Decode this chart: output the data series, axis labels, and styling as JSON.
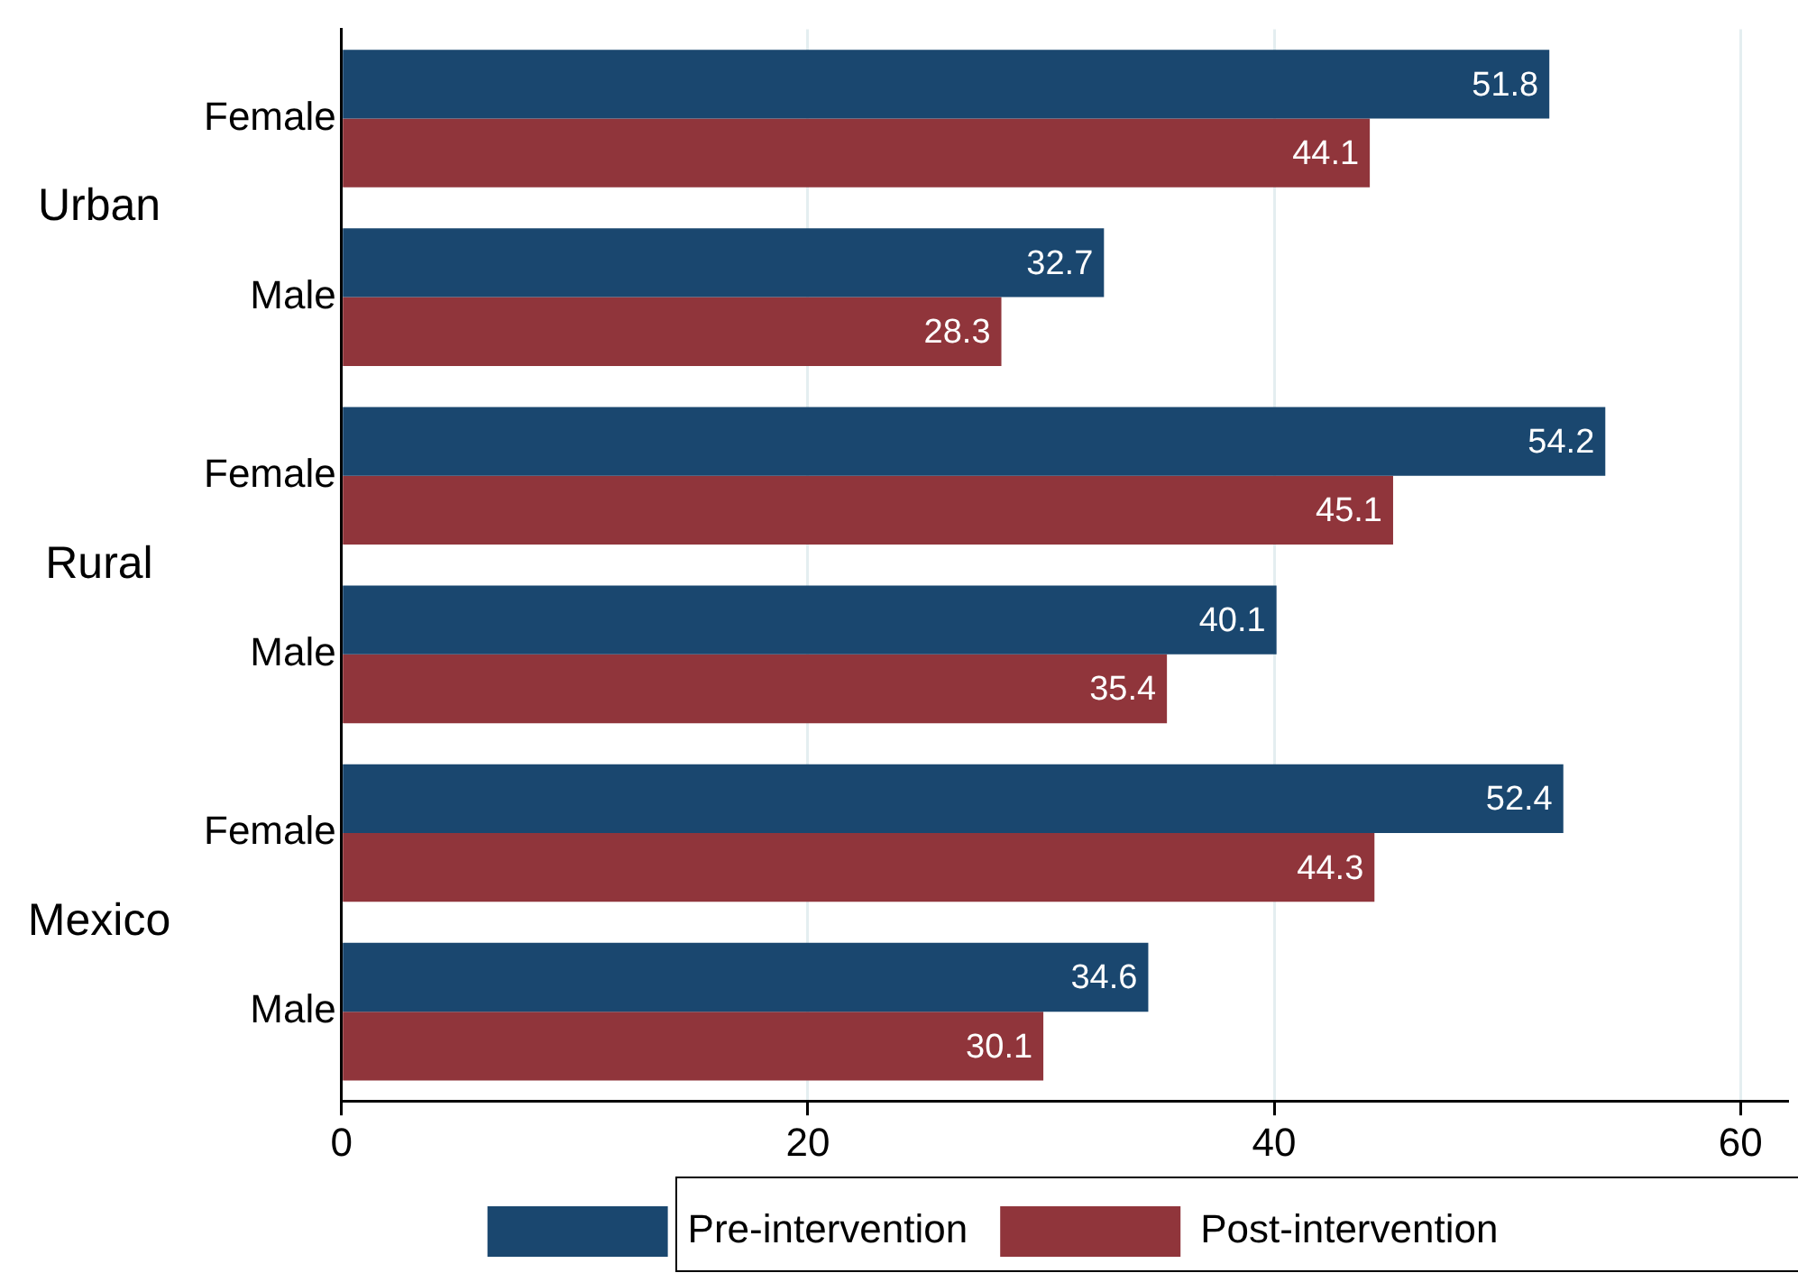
{
  "chart_data": {
    "type": "bar",
    "orientation": "horizontal",
    "categories": [
      "Female",
      "Male",
      "Female",
      "Male",
      "Female",
      "Male"
    ],
    "series": [
      {
        "name": "Pre-intervention",
        "color": "#1a476f",
        "values": [
          51.8,
          32.7,
          54.2,
          40.1,
          52.4,
          34.6
        ]
      },
      {
        "name": "Post-intervention",
        "color": "#90353b",
        "values": [
          44.1,
          28.3,
          45.1,
          35.4,
          44.3,
          30.1
        ]
      }
    ],
    "annotations": [
      "Urban",
      "Rural",
      "Mexico"
    ],
    "xlim": [
      0,
      62
    ],
    "xticks": [
      0,
      20,
      40,
      60
    ],
    "grid": "x",
    "legend": "bottom",
    "data_labels": true
  }
}
